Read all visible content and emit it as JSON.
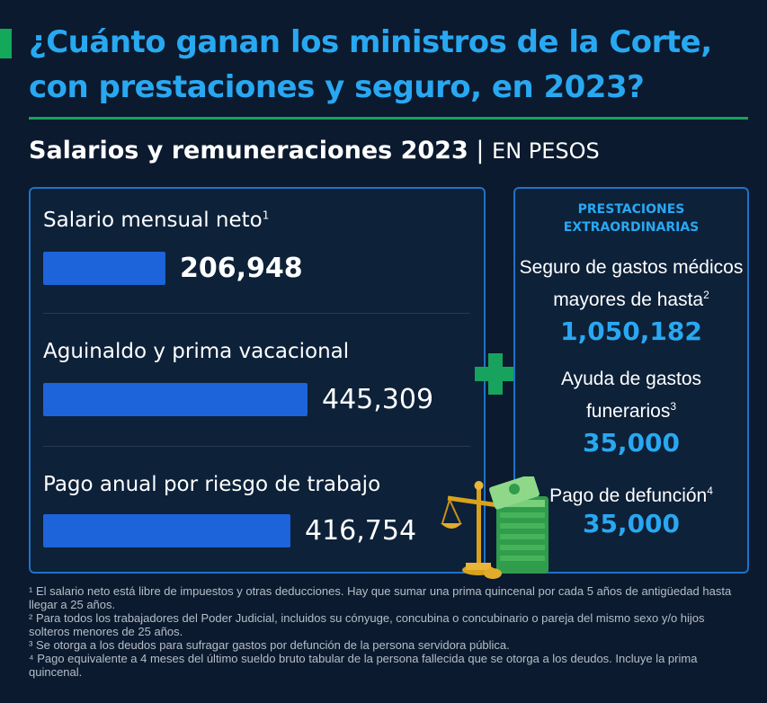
{
  "header": {
    "title_line1": "¿Cuánto ganan los ministros de la Corte,",
    "title_line2": "con prestaciones y seguro, en 2023?",
    "subtitle": "Salarios y remuneraciones 2023",
    "separator": "|",
    "unit": "EN PESOS"
  },
  "chart_data": {
    "type": "bar",
    "orientation": "horizontal",
    "categories": [
      "Salario mensual neto",
      "Aguinaldo y prima vacacional",
      "Pago anual por riesgo de trabajo"
    ],
    "category_notes": [
      "1",
      "",
      ""
    ],
    "values": [
      206948,
      445309,
      416754
    ],
    "value_labels": [
      "206,948",
      "445,309",
      "416,754"
    ],
    "title": "Salarios y remuneraciones 2023",
    "unit": "EN PESOS",
    "colors": {
      "bar": "#1d63d9",
      "accent": "#29a8f2",
      "green": "#17a35d"
    }
  },
  "extraordinary": {
    "heading_line1": "PRESTACIONES",
    "heading_line2": "EXTRAORDINARIAS",
    "items": [
      {
        "label_line1": "Seguro de gastos médicos",
        "label_line2": "mayores de hasta",
        "note": "2",
        "value": "1,050,182"
      },
      {
        "label_line1": "Ayuda de gastos",
        "label_line2": "funerarios",
        "note": "3",
        "value": "35,000"
      },
      {
        "label_line1": "Pago de defunción",
        "label_line2": "",
        "note": "4",
        "value": "35,000"
      }
    ]
  },
  "icons": {
    "plus": "plus-icon",
    "money": "scale-and-cash-icon"
  },
  "footnotes": [
    "¹ El salario neto está libre de impuestos y otras deducciones. Hay que sumar una prima quincenal por cada 5 años de antigüedad hasta llegar a 25 años.",
    "² Para todos los trabajadores del Poder Judicial, incluidos su cónyuge, concubina o concubinario o pareja del mismo sexo y/o hijos solteros menores de 25 años.",
    "³ Se otorga a los deudos para sufragar gastos por defunción de la persona servidora pública.",
    "⁴ Pago equivalente a 4 meses del último sueldo bruto tabular de la persona fallecida que se otorga a los deudos. Incluye la prima quincenal."
  ]
}
